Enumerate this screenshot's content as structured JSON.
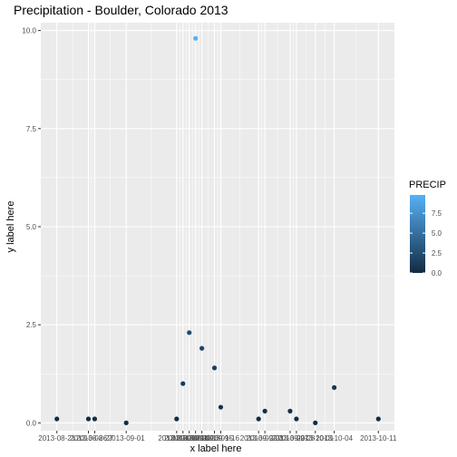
{
  "chart_data": {
    "type": "scatter",
    "title": "Precipitation - Boulder, Colorado 2013",
    "xlabel": "x label here",
    "ylabel": "y label here",
    "ylim": [
      -0.2,
      10.2
    ],
    "yticks": [
      0.0,
      2.5,
      5.0,
      7.5,
      10.0
    ],
    "ytick_labels": [
      "0.0",
      "2.5",
      "5.0",
      "7.5",
      "10.0"
    ],
    "grid": true,
    "x": [
      "2013-08-21",
      "2013-08-26",
      "2013-08-27",
      "2013-09-01",
      "2013-09-09",
      "2013-09-10",
      "2013-09-11",
      "2013-09-12",
      "2013-09-13",
      "2013-09-15",
      "2013-09-16",
      "2013-09-22",
      "2013-09-23",
      "2013-09-27",
      "2013-09-28",
      "2013-10-01",
      "2013-10-04",
      "2013-10-11"
    ],
    "values": [
      0.1,
      0.1,
      0.1,
      0.0,
      0.1,
      1.0,
      2.3,
      9.8,
      1.9,
      1.4,
      0.4,
      0.1,
      0.3,
      0.3,
      0.1,
      0.0,
      0.9,
      0.1
    ],
    "color_scale": {
      "name": "PRECIP",
      "low_color": "#132B43",
      "high_color": "#56B1F7",
      "breaks": [
        0.0,
        2.5,
        5.0,
        7.5
      ],
      "break_labels": [
        "0.0",
        "2.5",
        "5.0",
        "7.5"
      ],
      "range": [
        0.0,
        9.8
      ],
      "position": "right"
    },
    "panel_color": "#EBEBEB",
    "grid_color": "#FFFFFF"
  }
}
